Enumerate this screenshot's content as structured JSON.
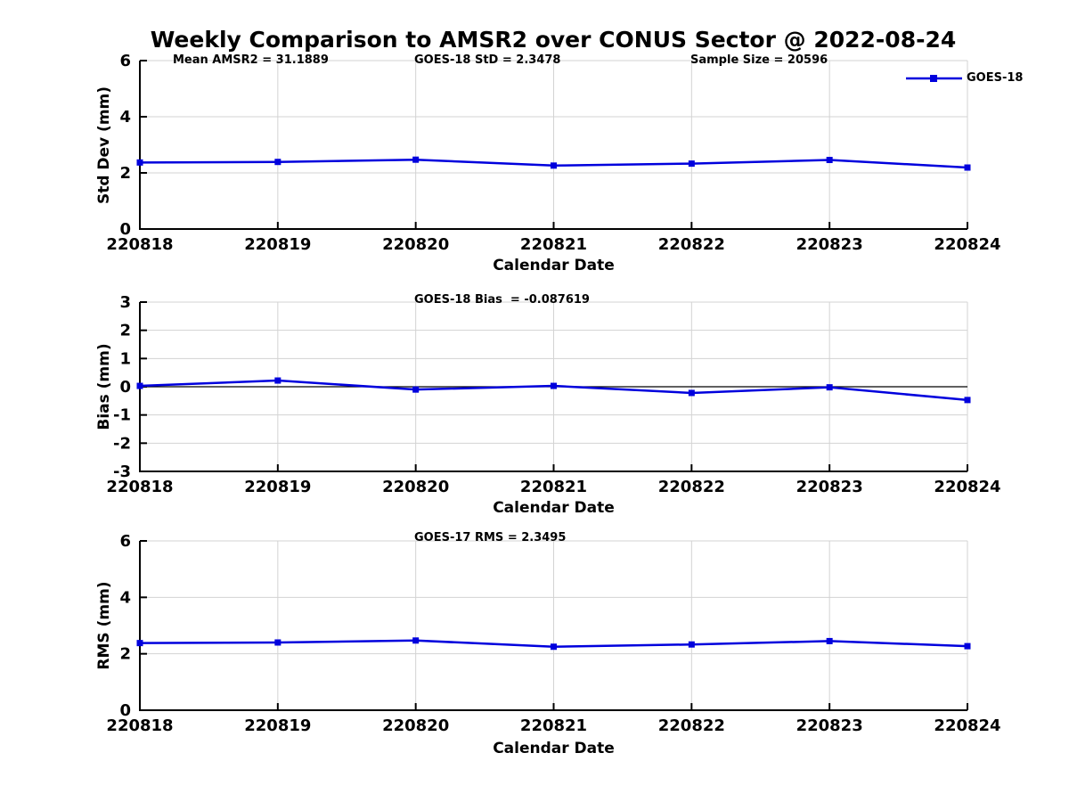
{
  "title": "Weekly Comparison to AMSR2 over CONUS Sector @ 2022-08-24",
  "legend": {
    "label": "GOES-18"
  },
  "colors": {
    "series_blue": "#0000dd",
    "grid_gray": "#d3d3d3",
    "axis_black": "#000000",
    "background": "#ffffff"
  },
  "chart_data": [
    {
      "type": "line",
      "panel": "std-dev",
      "title": "",
      "xlabel": "Calendar Date",
      "ylabel": "Std Dev (mm)",
      "categories": [
        "220818",
        "220819",
        "220820",
        "220821",
        "220822",
        "220823",
        "220824"
      ],
      "series": [
        {
          "name": "GOES-18",
          "values": [
            2.37,
            2.39,
            2.47,
            2.26,
            2.33,
            2.46,
            2.19
          ]
        }
      ],
      "ylim": [
        0,
        6
      ],
      "yticks": [
        0,
        2,
        4,
        6
      ],
      "grid": true,
      "zero_line": false,
      "legend_position": "upper-right",
      "annotations": [
        {
          "text": "Mean AMSR2 = 31.1889"
        },
        {
          "text": "GOES-18 StD = 2.3478"
        },
        {
          "text": "Sample Size = 20596"
        }
      ]
    },
    {
      "type": "line",
      "panel": "bias",
      "title": "",
      "xlabel": "Calendar Date",
      "ylabel": "Bias (mm)",
      "categories": [
        "220818",
        "220819",
        "220820",
        "220821",
        "220822",
        "220823",
        "220824"
      ],
      "series": [
        {
          "name": "GOES-18",
          "values": [
            0.03,
            0.22,
            -0.1,
            0.03,
            -0.22,
            -0.02,
            -0.47
          ]
        }
      ],
      "ylim": [
        -3,
        3
      ],
      "yticks": [
        -3,
        -2,
        -1,
        0,
        1,
        2,
        3
      ],
      "grid": true,
      "zero_line": true,
      "legend_position": "none",
      "annotations": [
        {
          "text": "GOES-18 Bias  = -0.087619"
        }
      ]
    },
    {
      "type": "line",
      "panel": "rms",
      "title": "",
      "xlabel": "Calendar Date",
      "ylabel": "RMS (mm)",
      "categories": [
        "220818",
        "220819",
        "220820",
        "220821",
        "220822",
        "220823",
        "220824"
      ],
      "series": [
        {
          "name": "GOES-18",
          "values": [
            2.38,
            2.4,
            2.47,
            2.25,
            2.33,
            2.45,
            2.27
          ]
        }
      ],
      "ylim": [
        0,
        6
      ],
      "yticks": [
        0,
        2,
        4,
        6
      ],
      "grid": true,
      "zero_line": false,
      "legend_position": "none",
      "annotations": [
        {
          "text": "GOES-17 RMS = 2.3495"
        }
      ]
    }
  ]
}
